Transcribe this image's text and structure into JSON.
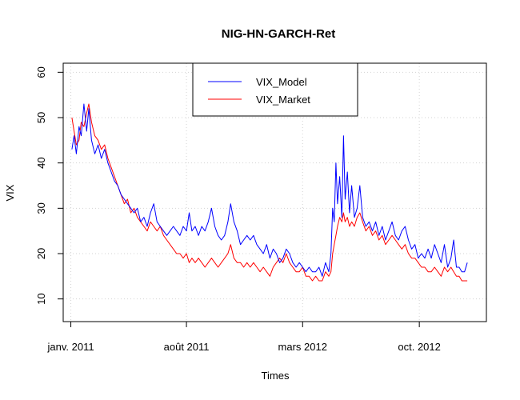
{
  "chart_data": {
    "type": "line",
    "title": "NIG-HN-GARCH-Ret",
    "xlabel": "Times",
    "ylabel": "VIX",
    "xlim": [
      "2010-12-18",
      "2013-02-01"
    ],
    "ylim": [
      5,
      62
    ],
    "grid": true,
    "legend_position": "top-center",
    "x_ticks": [
      {
        "date": "2011-01-01",
        "label": "janv. 2011"
      },
      {
        "date": "2011-08-01",
        "label": "août 2011"
      },
      {
        "date": "2012-03-01",
        "label": "mars 2012"
      },
      {
        "date": "2012-10-01",
        "label": "oct. 2012"
      }
    ],
    "y_ticks": [
      10,
      20,
      30,
      40,
      50,
      60
    ],
    "series": [
      {
        "name": "VIX_Model",
        "color": "#0000ff",
        "points": [
          [
            "2011-01-03",
            43
          ],
          [
            "2011-01-07",
            46
          ],
          [
            "2011-01-11",
            42
          ],
          [
            "2011-01-16",
            48
          ],
          [
            "2011-01-20",
            46
          ],
          [
            "2011-01-25",
            53
          ],
          [
            "2011-01-30",
            47
          ],
          [
            "2011-02-03",
            52
          ],
          [
            "2011-02-08",
            45
          ],
          [
            "2011-02-14",
            42
          ],
          [
            "2011-02-20",
            44
          ],
          [
            "2011-02-26",
            41
          ],
          [
            "2011-03-04",
            43
          ],
          [
            "2011-03-10",
            40
          ],
          [
            "2011-03-16",
            38
          ],
          [
            "2011-03-22",
            36
          ],
          [
            "2011-03-28",
            35
          ],
          [
            "2011-04-03",
            33
          ],
          [
            "2011-04-09",
            32
          ],
          [
            "2011-04-15",
            31
          ],
          [
            "2011-04-21",
            30
          ],
          [
            "2011-04-27",
            29
          ],
          [
            "2011-05-03",
            30
          ],
          [
            "2011-05-09",
            27
          ],
          [
            "2011-05-15",
            28
          ],
          [
            "2011-05-21",
            26
          ],
          [
            "2011-05-27",
            29
          ],
          [
            "2011-06-02",
            31
          ],
          [
            "2011-06-08",
            27
          ],
          [
            "2011-06-14",
            26
          ],
          [
            "2011-06-20",
            25
          ],
          [
            "2011-06-26",
            24
          ],
          [
            "2011-07-02",
            25
          ],
          [
            "2011-07-08",
            26
          ],
          [
            "2011-07-14",
            25
          ],
          [
            "2011-07-20",
            24
          ],
          [
            "2011-07-26",
            26
          ],
          [
            "2011-08-01",
            25
          ],
          [
            "2011-08-06",
            29
          ],
          [
            "2011-08-11",
            25
          ],
          [
            "2011-08-17",
            26
          ],
          [
            "2011-08-23",
            24
          ],
          [
            "2011-08-29",
            26
          ],
          [
            "2011-09-04",
            25
          ],
          [
            "2011-09-10",
            27
          ],
          [
            "2011-09-16",
            30
          ],
          [
            "2011-09-22",
            26
          ],
          [
            "2011-09-28",
            24
          ],
          [
            "2011-10-04",
            23
          ],
          [
            "2011-10-10",
            24
          ],
          [
            "2011-10-16",
            27
          ],
          [
            "2011-10-21",
            31
          ],
          [
            "2011-10-27",
            27
          ],
          [
            "2011-11-02",
            25
          ],
          [
            "2011-11-08",
            22
          ],
          [
            "2011-11-14",
            23
          ],
          [
            "2011-11-20",
            24
          ],
          [
            "2011-11-26",
            23
          ],
          [
            "2011-12-02",
            24
          ],
          [
            "2011-12-08",
            22
          ],
          [
            "2011-12-14",
            21
          ],
          [
            "2011-12-20",
            20
          ],
          [
            "2011-12-26",
            22
          ],
          [
            "2012-01-01",
            19
          ],
          [
            "2012-01-07",
            21
          ],
          [
            "2012-01-13",
            20
          ],
          [
            "2012-01-19",
            18
          ],
          [
            "2012-01-25",
            19
          ],
          [
            "2012-01-31",
            21
          ],
          [
            "2012-02-06",
            20
          ],
          [
            "2012-02-12",
            18
          ],
          [
            "2012-02-18",
            17
          ],
          [
            "2012-02-24",
            18
          ],
          [
            "2012-03-01",
            17
          ],
          [
            "2012-03-07",
            16
          ],
          [
            "2012-03-13",
            17
          ],
          [
            "2012-03-19",
            16
          ],
          [
            "2012-03-25",
            16
          ],
          [
            "2012-03-31",
            17
          ],
          [
            "2012-04-06",
            15
          ],
          [
            "2012-04-12",
            18
          ],
          [
            "2012-04-18",
            16
          ],
          [
            "2012-04-22",
            20
          ],
          [
            "2012-04-25",
            30
          ],
          [
            "2012-04-28",
            27
          ],
          [
            "2012-05-01",
            40
          ],
          [
            "2012-05-04",
            31
          ],
          [
            "2012-05-08",
            37
          ],
          [
            "2012-05-12",
            28
          ],
          [
            "2012-05-15",
            46
          ],
          [
            "2012-05-18",
            32
          ],
          [
            "2012-05-22",
            38
          ],
          [
            "2012-05-26",
            29
          ],
          [
            "2012-05-30",
            35
          ],
          [
            "2012-06-04",
            28
          ],
          [
            "2012-06-09",
            30
          ],
          [
            "2012-06-14",
            35
          ],
          [
            "2012-06-19",
            28
          ],
          [
            "2012-06-25",
            26
          ],
          [
            "2012-07-01",
            27
          ],
          [
            "2012-07-07",
            25
          ],
          [
            "2012-07-13",
            27
          ],
          [
            "2012-07-19",
            24
          ],
          [
            "2012-07-25",
            26
          ],
          [
            "2012-07-31",
            23
          ],
          [
            "2012-08-06",
            25
          ],
          [
            "2012-08-12",
            27
          ],
          [
            "2012-08-18",
            24
          ],
          [
            "2012-08-24",
            23
          ],
          [
            "2012-08-30",
            25
          ],
          [
            "2012-09-05",
            26
          ],
          [
            "2012-09-11",
            23
          ],
          [
            "2012-09-17",
            21
          ],
          [
            "2012-09-23",
            22
          ],
          [
            "2012-09-29",
            19
          ],
          [
            "2012-10-05",
            20
          ],
          [
            "2012-10-11",
            19
          ],
          [
            "2012-10-17",
            21
          ],
          [
            "2012-10-23",
            19
          ],
          [
            "2012-10-29",
            22
          ],
          [
            "2012-11-04",
            20
          ],
          [
            "2012-11-10",
            18
          ],
          [
            "2012-11-16",
            22
          ],
          [
            "2012-11-22",
            17
          ],
          [
            "2012-11-28",
            19
          ],
          [
            "2012-12-03",
            23
          ],
          [
            "2012-12-08",
            17
          ],
          [
            "2012-12-13",
            17
          ],
          [
            "2012-12-18",
            16
          ],
          [
            "2012-12-23",
            16
          ],
          [
            "2012-12-28",
            18
          ]
        ]
      },
      {
        "name": "VIX_Market",
        "color": "#ff0000",
        "points": [
          [
            "2011-01-03",
            50
          ],
          [
            "2011-01-07",
            47
          ],
          [
            "2011-01-11",
            44
          ],
          [
            "2011-01-16",
            45
          ],
          [
            "2011-01-20",
            49
          ],
          [
            "2011-01-25",
            48
          ],
          [
            "2011-01-30",
            51
          ],
          [
            "2011-02-03",
            53
          ],
          [
            "2011-02-08",
            49
          ],
          [
            "2011-02-14",
            46
          ],
          [
            "2011-02-20",
            45
          ],
          [
            "2011-02-26",
            43
          ],
          [
            "2011-03-04",
            44
          ],
          [
            "2011-03-10",
            41
          ],
          [
            "2011-03-16",
            39
          ],
          [
            "2011-03-22",
            37
          ],
          [
            "2011-03-28",
            35
          ],
          [
            "2011-04-03",
            33
          ],
          [
            "2011-04-09",
            31
          ],
          [
            "2011-04-15",
            32
          ],
          [
            "2011-04-21",
            29
          ],
          [
            "2011-04-27",
            30
          ],
          [
            "2011-05-03",
            28
          ],
          [
            "2011-05-09",
            27
          ],
          [
            "2011-05-15",
            26
          ],
          [
            "2011-05-21",
            25
          ],
          [
            "2011-05-27",
            27
          ],
          [
            "2011-06-02",
            26
          ],
          [
            "2011-06-08",
            25
          ],
          [
            "2011-06-14",
            26
          ],
          [
            "2011-06-20",
            24
          ],
          [
            "2011-06-26",
            23
          ],
          [
            "2011-07-02",
            22
          ],
          [
            "2011-07-08",
            21
          ],
          [
            "2011-07-14",
            20
          ],
          [
            "2011-07-20",
            20
          ],
          [
            "2011-07-26",
            19
          ],
          [
            "2011-08-01",
            20
          ],
          [
            "2011-08-06",
            18
          ],
          [
            "2011-08-11",
            19
          ],
          [
            "2011-08-17",
            18
          ],
          [
            "2011-08-23",
            19
          ],
          [
            "2011-08-29",
            18
          ],
          [
            "2011-09-04",
            17
          ],
          [
            "2011-09-10",
            18
          ],
          [
            "2011-09-16",
            19
          ],
          [
            "2011-09-22",
            18
          ],
          [
            "2011-09-28",
            17
          ],
          [
            "2011-10-04",
            18
          ],
          [
            "2011-10-10",
            19
          ],
          [
            "2011-10-16",
            20
          ],
          [
            "2011-10-21",
            22
          ],
          [
            "2011-10-27",
            19
          ],
          [
            "2011-11-02",
            18
          ],
          [
            "2011-11-08",
            18
          ],
          [
            "2011-11-14",
            17
          ],
          [
            "2011-11-20",
            18
          ],
          [
            "2011-11-26",
            17
          ],
          [
            "2011-12-02",
            18
          ],
          [
            "2011-12-08",
            17
          ],
          [
            "2011-12-14",
            16
          ],
          [
            "2011-12-20",
            17
          ],
          [
            "2011-12-26",
            16
          ],
          [
            "2012-01-01",
            15
          ],
          [
            "2012-01-07",
            17
          ],
          [
            "2012-01-13",
            18
          ],
          [
            "2012-01-19",
            19
          ],
          [
            "2012-01-25",
            18
          ],
          [
            "2012-01-31",
            20
          ],
          [
            "2012-02-06",
            18
          ],
          [
            "2012-02-12",
            17
          ],
          [
            "2012-02-18",
            16
          ],
          [
            "2012-02-24",
            16
          ],
          [
            "2012-03-01",
            17
          ],
          [
            "2012-03-07",
            15
          ],
          [
            "2012-03-13",
            15
          ],
          [
            "2012-03-19",
            14
          ],
          [
            "2012-03-25",
            15
          ],
          [
            "2012-03-31",
            14
          ],
          [
            "2012-04-06",
            14
          ],
          [
            "2012-04-12",
            16
          ],
          [
            "2012-04-18",
            15
          ],
          [
            "2012-04-22",
            16
          ],
          [
            "2012-04-25",
            20
          ],
          [
            "2012-04-28",
            22
          ],
          [
            "2012-05-01",
            24
          ],
          [
            "2012-05-04",
            26
          ],
          [
            "2012-05-08",
            28
          ],
          [
            "2012-05-12",
            27
          ],
          [
            "2012-05-15",
            29
          ],
          [
            "2012-05-18",
            27
          ],
          [
            "2012-05-22",
            28
          ],
          [
            "2012-05-26",
            26
          ],
          [
            "2012-05-30",
            27
          ],
          [
            "2012-06-04",
            26
          ],
          [
            "2012-06-09",
            28
          ],
          [
            "2012-06-14",
            29
          ],
          [
            "2012-06-19",
            27
          ],
          [
            "2012-06-25",
            25
          ],
          [
            "2012-07-01",
            26
          ],
          [
            "2012-07-07",
            24
          ],
          [
            "2012-07-13",
            25
          ],
          [
            "2012-07-19",
            23
          ],
          [
            "2012-07-25",
            24
          ],
          [
            "2012-07-31",
            22
          ],
          [
            "2012-08-06",
            23
          ],
          [
            "2012-08-12",
            24
          ],
          [
            "2012-08-18",
            23
          ],
          [
            "2012-08-24",
            22
          ],
          [
            "2012-08-30",
            21
          ],
          [
            "2012-09-05",
            22
          ],
          [
            "2012-09-11",
            20
          ],
          [
            "2012-09-17",
            19
          ],
          [
            "2012-09-23",
            19
          ],
          [
            "2012-09-29",
            18
          ],
          [
            "2012-10-05",
            17
          ],
          [
            "2012-10-11",
            17
          ],
          [
            "2012-10-17",
            16
          ],
          [
            "2012-10-23",
            16
          ],
          [
            "2012-10-29",
            17
          ],
          [
            "2012-11-04",
            16
          ],
          [
            "2012-11-10",
            15
          ],
          [
            "2012-11-16",
            17
          ],
          [
            "2012-11-22",
            16
          ],
          [
            "2012-11-28",
            17
          ],
          [
            "2012-12-03",
            16
          ],
          [
            "2012-12-08",
            15
          ],
          [
            "2012-12-13",
            15
          ],
          [
            "2012-12-18",
            14
          ],
          [
            "2012-12-23",
            14
          ],
          [
            "2012-12-28",
            14
          ]
        ]
      }
    ]
  }
}
